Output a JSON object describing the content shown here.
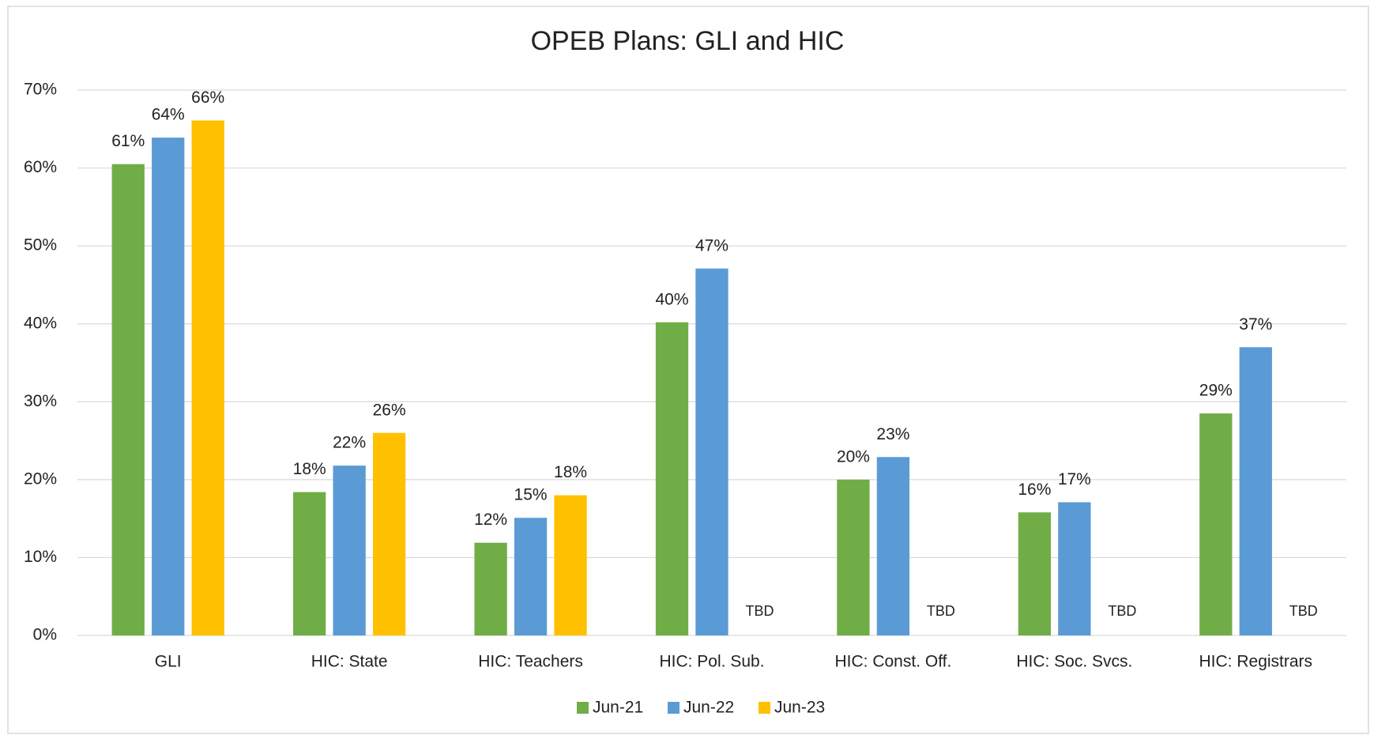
{
  "chart_data": {
    "type": "bar",
    "title": "OPEB Plans: GLI and HIC",
    "categories": [
      "GLI",
      "HIC: State",
      "HIC: Teachers",
      "HIC: Pol. Sub.",
      "HIC: Const. Off.",
      "HIC: Soc. Svcs.",
      "HIC: Registrars"
    ],
    "series": [
      {
        "name": "Jun-21",
        "color": "#70ad47",
        "values": [
          60.5,
          18.4,
          11.9,
          40.2,
          20.0,
          15.8,
          28.5
        ],
        "value_labels": [
          "61%",
          "18%",
          "12%",
          "40%",
          "20%",
          "16%",
          "29%"
        ]
      },
      {
        "name": "Jun-22",
        "color": "#5b9bd5",
        "values": [
          63.9,
          21.8,
          15.1,
          47.1,
          22.9,
          17.1,
          37.0
        ],
        "value_labels": [
          "64%",
          "22%",
          "15%",
          "47%",
          "23%",
          "17%",
          "37%"
        ]
      },
      {
        "name": "Jun-23",
        "color": "#ffc000",
        "values": [
          66.1,
          26.0,
          18.0,
          null,
          null,
          null,
          null
        ],
        "value_labels": [
          "66%",
          "26%",
          "18%",
          "TBD",
          "TBD",
          "TBD",
          "TBD"
        ]
      }
    ],
    "ylim": [
      0,
      70
    ],
    "yticks": [
      {
        "value": 0,
        "label": "0%"
      },
      {
        "value": 10,
        "label": "10%"
      },
      {
        "value": 20,
        "label": "20%"
      },
      {
        "value": 30,
        "label": "30%"
      },
      {
        "value": 40,
        "label": "40%"
      },
      {
        "value": 50,
        "label": "50%"
      },
      {
        "value": 60,
        "label": "60%"
      },
      {
        "value": 70,
        "label": "70%"
      }
    ],
    "grid": true,
    "legend": "bottom"
  }
}
